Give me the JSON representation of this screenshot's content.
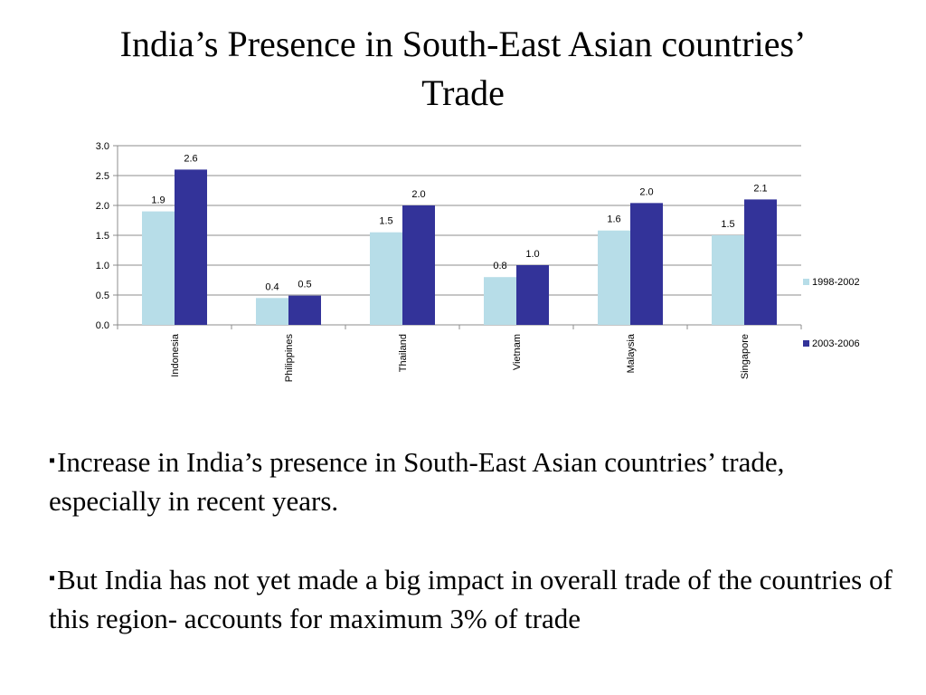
{
  "slide": {
    "title_line1": "India’s Presence in South-East Asian countries’",
    "title_line2": "Trade"
  },
  "chart_data": {
    "type": "bar",
    "title": "",
    "xlabel": "",
    "ylabel": "",
    "categories": [
      "Indonesia",
      "Philippines",
      "Thailand",
      "Vietnam",
      "Malaysia",
      "Singapore"
    ],
    "series": [
      {
        "name": "1998-2002",
        "values": [
          1.9,
          0.45,
          1.55,
          0.8,
          1.58,
          1.5
        ],
        "labels": [
          "1.9",
          "0.4",
          "1.5",
          "0.8",
          "1.6",
          "1.5"
        ],
        "color": "#b7dde8"
      },
      {
        "name": "2003-2006",
        "values": [
          2.6,
          0.49,
          2.0,
          1.0,
          2.04,
          2.1
        ],
        "labels": [
          "2.6",
          "0.5",
          "2.0",
          "1.0",
          "2.0",
          "2.1"
        ],
        "color": "#333399"
      }
    ],
    "ylim": [
      0,
      3.0
    ],
    "yticks": [
      "0.0",
      "0.5",
      "1.0",
      "1.5",
      "2.0",
      "2.5",
      "3.0"
    ],
    "grid": true,
    "legend_position": "right"
  },
  "bullets": [
    {
      "marker": "▪",
      "text": "Increase in India’s presence in South-East Asian countries’ trade, especially in recent years."
    },
    {
      "marker": "▪",
      "text": "But India has not yet made a big impact in overall trade of the countries of this region- accounts for maximum 3% of trade"
    }
  ]
}
